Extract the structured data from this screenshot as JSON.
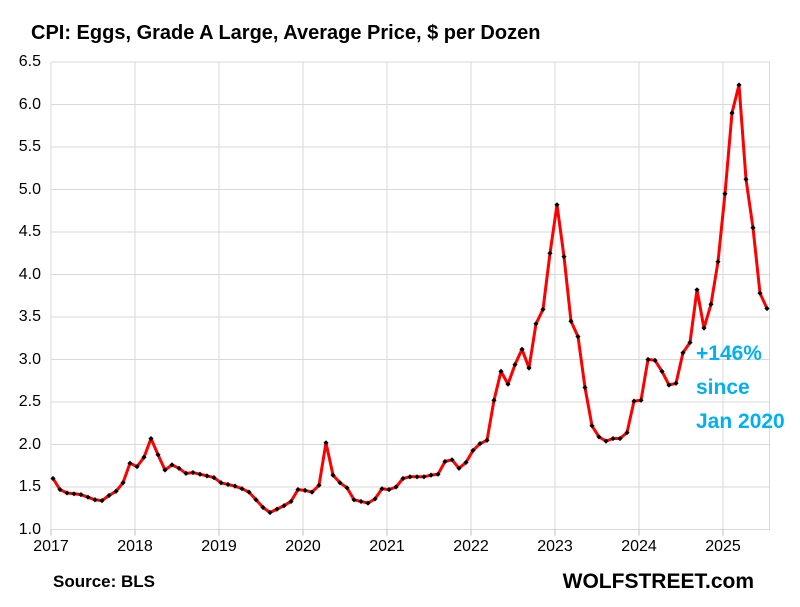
{
  "title": "CPI: Eggs, Grade A Large, Average Price, $ per Dozen",
  "annotation": {
    "lines": [
      "+146%",
      "since",
      "Jan 2020"
    ],
    "color": "#00B0F0"
  },
  "footer": {
    "source": "Source: BLS",
    "branding": "WOLFSTREET.com"
  },
  "chart_data": {
    "type": "line",
    "title": "CPI: Eggs, Grade A Large, Average Price, $ per Dozen",
    "frequency": "monthly",
    "x_start": "2017-01",
    "x_end": "2025-07",
    "x_ticks": [
      "2017",
      "2018",
      "2019",
      "2020",
      "2021",
      "2022",
      "2023",
      "2024",
      "2025"
    ],
    "ylim": [
      1.0,
      6.5
    ],
    "y_tick_step": 0.5,
    "grid": true,
    "gridline_color": "#D9D9D9",
    "series": [
      {
        "name": "Average price, eggs grade A large, $ per dozen",
        "color": "#FF0000",
        "marker": "diamond",
        "marker_color": "#000000",
        "values": [
          1.6,
          1.47,
          1.43,
          1.42,
          1.41,
          1.38,
          1.35,
          1.34,
          1.4,
          1.45,
          1.55,
          1.78,
          1.74,
          1.85,
          2.07,
          1.88,
          1.7,
          1.76,
          1.72,
          1.66,
          1.67,
          1.65,
          1.63,
          1.61,
          1.55,
          1.53,
          1.51,
          1.48,
          1.44,
          1.35,
          1.26,
          1.2,
          1.24,
          1.28,
          1.33,
          1.47,
          1.46,
          1.44,
          1.52,
          2.02,
          1.64,
          1.55,
          1.49,
          1.35,
          1.33,
          1.31,
          1.36,
          1.48,
          1.47,
          1.5,
          1.6,
          1.62,
          1.62,
          1.62,
          1.64,
          1.65,
          1.8,
          1.82,
          1.72,
          1.79,
          1.93,
          2.01,
          2.05,
          2.52,
          2.86,
          2.71,
          2.94,
          3.12,
          2.9,
          3.42,
          3.59,
          4.25,
          4.82,
          4.21,
          3.45,
          3.27,
          2.67,
          2.22,
          2.09,
          2.04,
          2.07,
          2.07,
          2.14,
          2.51,
          2.52,
          3.0,
          2.99,
          2.86,
          2.7,
          2.72,
          3.08,
          3.2,
          3.82,
          3.37,
          3.65,
          4.15,
          4.95,
          5.9,
          6.23,
          5.12,
          4.55,
          3.78,
          3.6
        ]
      }
    ]
  }
}
